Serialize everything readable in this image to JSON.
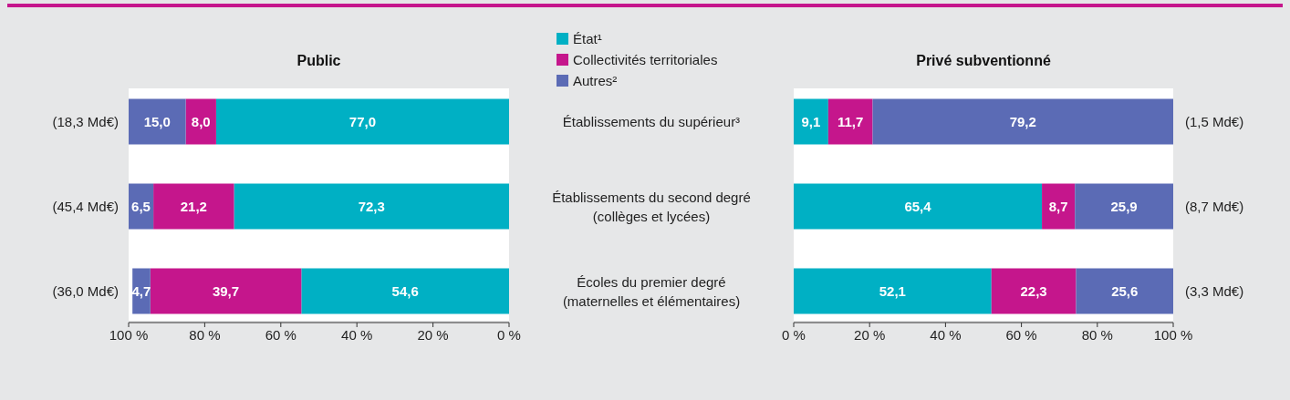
{
  "chart_data": [
    {
      "type": "bar",
      "orientation": "horizontal",
      "stacked": true,
      "title": "Public",
      "categories": [
        "Établissements du supérieur³",
        "Établissements du second degré\n(collèges et lycées)",
        "Écoles du premier degré\n(maternelles et élémentaires)"
      ],
      "series": [
        {
          "name": "État¹",
          "color": "#00b0c4",
          "values": [
            77.0,
            72.3,
            54.6
          ],
          "value_labels": [
            "77,0",
            "72,3",
            "54,6"
          ]
        },
        {
          "name": "Collectivités territoriales",
          "color": "#c5168c",
          "values": [
            8.0,
            21.2,
            39.7
          ],
          "value_labels": [
            "8,0",
            "21,2",
            "39,7"
          ]
        },
        {
          "name": "Autres²",
          "color": "#5b6bb5",
          "values": [
            15.0,
            6.5,
            4.7
          ],
          "value_labels": [
            "15,0",
            "6,5",
            "4,7"
          ]
        }
      ],
      "xlim": [
        100,
        0
      ],
      "xticks": [
        {
          "value": 100,
          "label": "100 %"
        },
        {
          "value": 80,
          "label": "80 %"
        },
        {
          "value": 60,
          "label": "60 %"
        },
        {
          "value": 40,
          "label": "40 %"
        },
        {
          "value": 20,
          "label": "20 %"
        },
        {
          "value": 0,
          "label": "0 %"
        }
      ],
      "legend": "top right",
      "annotations": [
        "(18,3 Md€)",
        "(45,4 Md€)",
        "(36,0 Md€)"
      ]
    },
    {
      "type": "bar",
      "orientation": "horizontal",
      "stacked": true,
      "title": "Privé subventionné",
      "categories": [
        null,
        null,
        null
      ],
      "series": [
        {
          "color": "#00b0c4",
          "values": [
            9.1,
            65.4,
            52.1
          ],
          "value_labels": [
            "9,1",
            "65,4",
            "52,1"
          ]
        },
        {
          "color": "#c5168c",
          "values": [
            11.7,
            8.7,
            22.3
          ],
          "value_labels": [
            "11,7",
            "8,7",
            "22,3"
          ]
        },
        {
          "color": "#5b6bb5",
          "values": [
            79.2,
            25.9,
            25.6
          ],
          "value_labels": [
            "79,2",
            "25,9",
            "25,6"
          ]
        }
      ],
      "xlim": [
        0,
        100
      ],
      "xticks": [
        {
          "value": 0,
          "label": "0 %"
        },
        {
          "value": 20,
          "label": "20 %"
        },
        {
          "value": 40,
          "label": "40 %"
        },
        {
          "value": 60,
          "label": "60 %"
        },
        {
          "value": 80,
          "label": "80 %"
        },
        {
          "value": 100,
          "label": "100 %"
        }
      ],
      "annotations": [
        "(1,5 Md€)",
        "(8,7 Md€)",
        "(3,3 Md€)"
      ]
    }
  ]
}
